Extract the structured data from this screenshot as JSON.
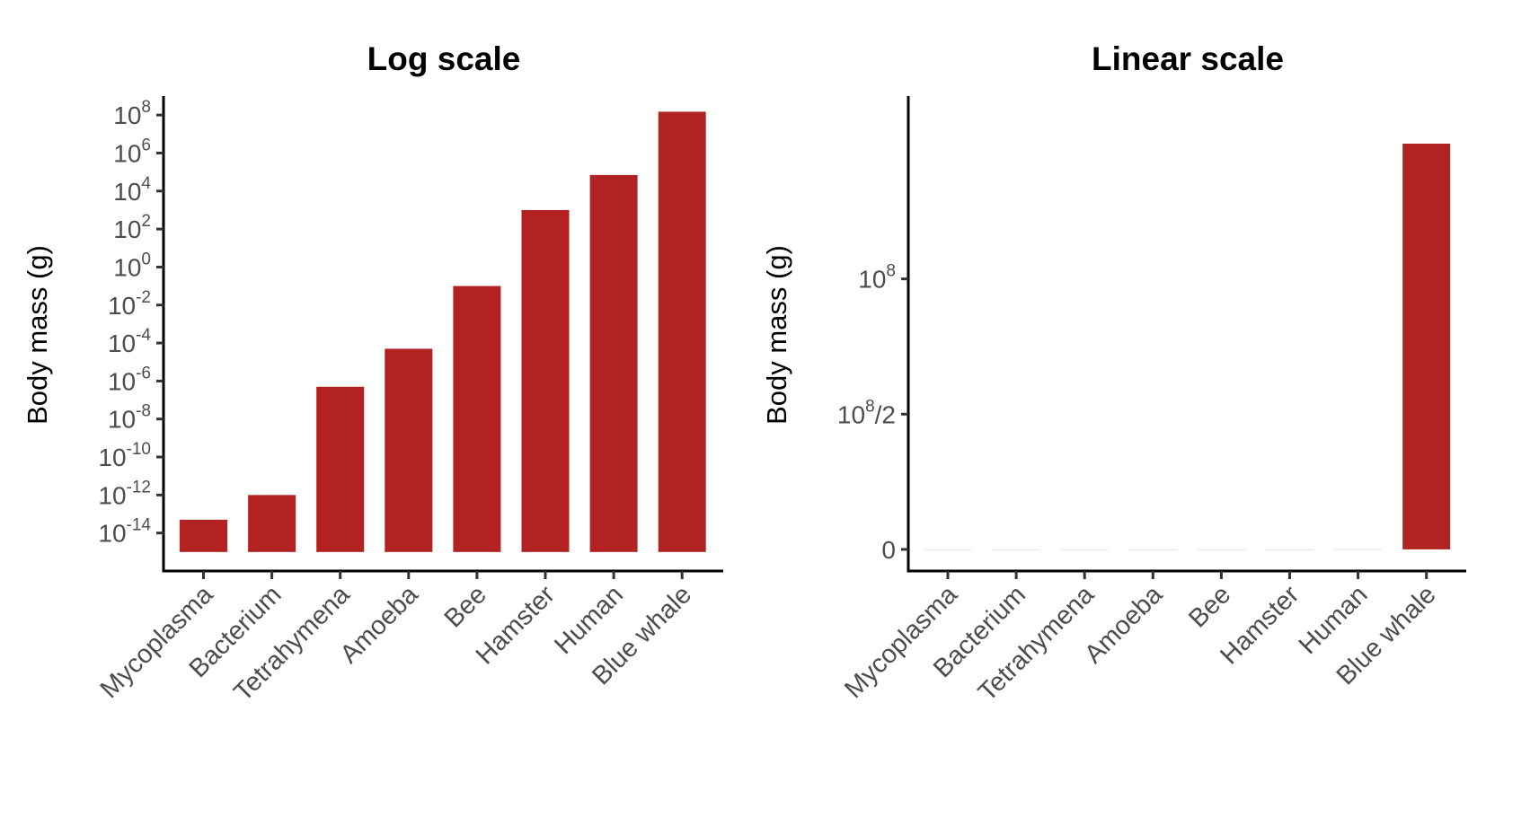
{
  "chart_data": [
    {
      "type": "bar",
      "title": "Log scale",
      "ylabel": "Body mass (g)",
      "xlabel": "",
      "yscale": "log10",
      "ylim": [
        1e-16,
        1000000000.0
      ],
      "bar_baseline": 1e-15,
      "grid": false,
      "bar_color": "#b22222",
      "categories": [
        "Mycoplasma",
        "Bacterium",
        "Tetrahymena",
        "Amoeba",
        "Bee",
        "Hamster",
        "Human",
        "Blue whale"
      ],
      "values": [
        5e-14,
        1e-12,
        5e-07,
        5e-05,
        0.1,
        1000,
        70000,
        150000000.0
      ],
      "yticks": [
        {
          "value": 100000000.0,
          "base": "10",
          "exp": "8"
        },
        {
          "value": 1000000.0,
          "base": "10",
          "exp": "6"
        },
        {
          "value": 10000.0,
          "base": "10",
          "exp": "4"
        },
        {
          "value": 100.0,
          "base": "10",
          "exp": "2"
        },
        {
          "value": 1,
          "base": "10",
          "exp": "0"
        },
        {
          "value": 0.01,
          "base": "10",
          "exp": "-2"
        },
        {
          "value": 0.0001,
          "base": "10",
          "exp": "-4"
        },
        {
          "value": 1e-06,
          "base": "10",
          "exp": "-6"
        },
        {
          "value": 1e-08,
          "base": "10",
          "exp": "-8"
        },
        {
          "value": 1e-10,
          "base": "10",
          "exp": "-10"
        },
        {
          "value": 1e-12,
          "base": "10",
          "exp": "-12"
        },
        {
          "value": 1e-14,
          "base": "10",
          "exp": "-14"
        }
      ]
    },
    {
      "type": "bar",
      "title": "Linear scale",
      "ylabel": "Body mass (g)",
      "xlabel": "",
      "yscale": "linear",
      "ylim": [
        -8000000.0,
        167600000.0
      ],
      "grid": false,
      "bar_color": "#b22222",
      "categories": [
        "Mycoplasma",
        "Bacterium",
        "Tetrahymena",
        "Amoeba",
        "Bee",
        "Hamster",
        "Human",
        "Blue whale"
      ],
      "values": [
        5e-14,
        1e-12,
        5e-07,
        5e-05,
        0.1,
        1000,
        70000,
        150000000.0
      ],
      "yticks": [
        {
          "value": 100000000.0,
          "base": "10",
          "exp": "8",
          "suffix": ""
        },
        {
          "value": 50000000.0,
          "base": "10",
          "exp": "8",
          "suffix": "/2"
        },
        {
          "value": 0,
          "base": "0",
          "exp": "",
          "suffix": ""
        }
      ]
    }
  ]
}
